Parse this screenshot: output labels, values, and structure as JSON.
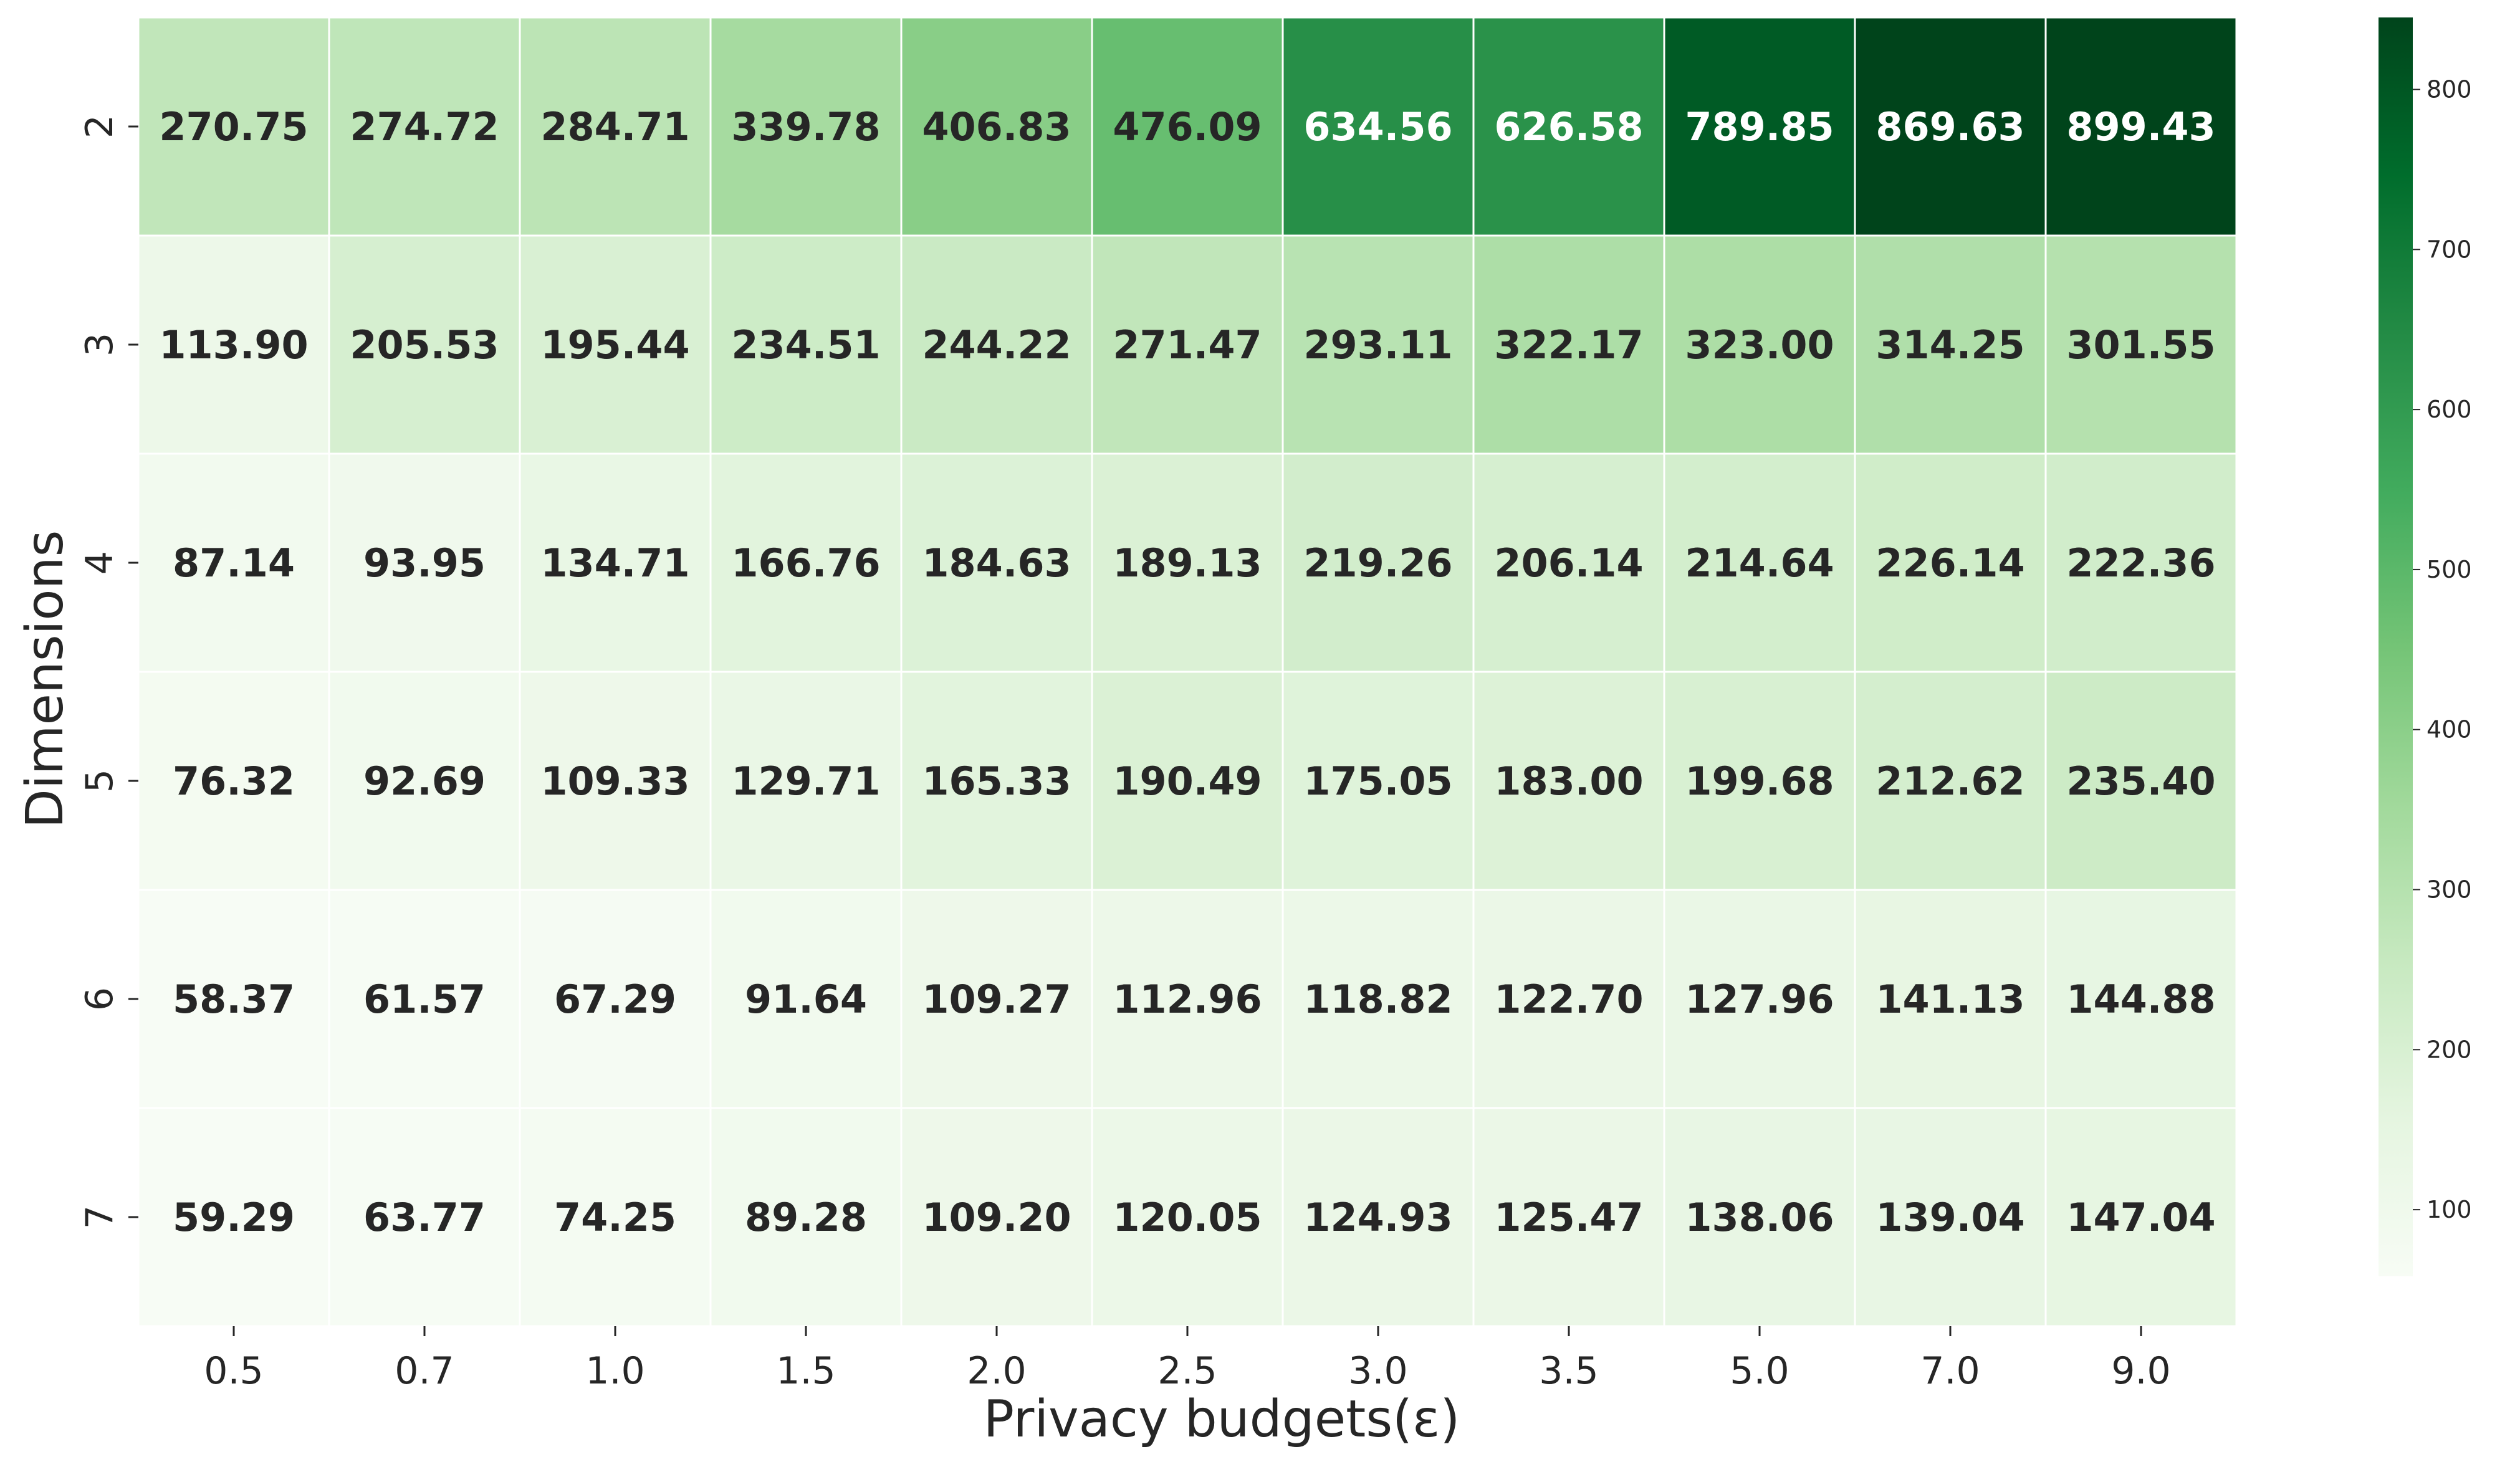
{
  "chart_data": {
    "type": "heatmap",
    "xlabel": "Privacy budgets(ε)",
    "ylabel": "Dimensions",
    "x_categories": [
      "0.5",
      "0.7",
      "1.0",
      "1.5",
      "2.0",
      "2.5",
      "3.0",
      "3.5",
      "5.0",
      "7.0",
      "9.0"
    ],
    "y_categories": [
      "2",
      "3",
      "4",
      "5",
      "6",
      "7"
    ],
    "values": [
      [
        270.75,
        274.72,
        284.71,
        339.78,
        406.83,
        476.09,
        634.56,
        626.58,
        789.85,
        869.63,
        899.43
      ],
      [
        113.9,
        205.53,
        195.44,
        234.51,
        244.22,
        271.47,
        293.11,
        322.17,
        323.0,
        314.25,
        301.55
      ],
      [
        87.14,
        93.95,
        134.71,
        166.76,
        184.63,
        189.13,
        219.26,
        206.14,
        214.64,
        226.14,
        222.36
      ],
      [
        76.32,
        92.69,
        109.33,
        129.71,
        165.33,
        190.49,
        175.05,
        183.0,
        199.68,
        212.62,
        235.4
      ],
      [
        58.37,
        61.57,
        67.29,
        91.64,
        109.27,
        112.96,
        118.82,
        122.7,
        127.96,
        141.13,
        144.88
      ],
      [
        59.29,
        63.77,
        74.25,
        89.28,
        109.2,
        120.05,
        124.93,
        125.47,
        138.06,
        139.04,
        147.04
      ]
    ],
    "cell_labels": [
      [
        "270.75",
        "274.72",
        "284.71",
        "339.78",
        "406.83",
        "476.09",
        "634.56",
        "626.58",
        "789.85",
        "869.63",
        "899.43"
      ],
      [
        "113.90",
        "205.53",
        "195.44",
        "234.51",
        "244.22",
        "271.47",
        "293.11",
        "322.17",
        "323.00",
        "314.25",
        "301.55"
      ],
      [
        "87.14",
        "93.95",
        "134.71",
        "166.76",
        "184.63",
        "189.13",
        "219.26",
        "206.14",
        "214.64",
        "226.14",
        "222.36"
      ],
      [
        "76.32",
        "92.69",
        "109.33",
        "129.71",
        "165.33",
        "190.49",
        "175.05",
        "183.00",
        "199.68",
        "212.62",
        "235.40"
      ],
      [
        "58.37",
        "61.57",
        "67.29",
        "91.64",
        "109.27",
        "112.96",
        "118.82",
        "122.70",
        "127.96",
        "141.13",
        "144.88"
      ],
      [
        "59.29",
        "63.77",
        "74.25",
        "89.28",
        "109.20",
        "120.05",
        "124.93",
        "125.47",
        "138.06",
        "139.04",
        "147.04"
      ]
    ],
    "colorbar": {
      "range": [
        58.37,
        845
      ],
      "ticks": [
        100,
        200,
        300,
        400,
        500,
        600,
        700,
        800
      ],
      "tick_labels": [
        "100",
        "200",
        "300",
        "400",
        "500",
        "600",
        "700",
        "800"
      ]
    },
    "colormap": "Greens",
    "colormap_stops": [
      "#f7fcf5",
      "#e5f5e0",
      "#c7e9c0",
      "#a1d99b",
      "#74c476",
      "#41ab5d",
      "#238b45",
      "#006d2c",
      "#00441b"
    ],
    "text_color_dark": "#262626",
    "text_color_light": "#ffffff",
    "grid_line_color": "#ffffff"
  }
}
